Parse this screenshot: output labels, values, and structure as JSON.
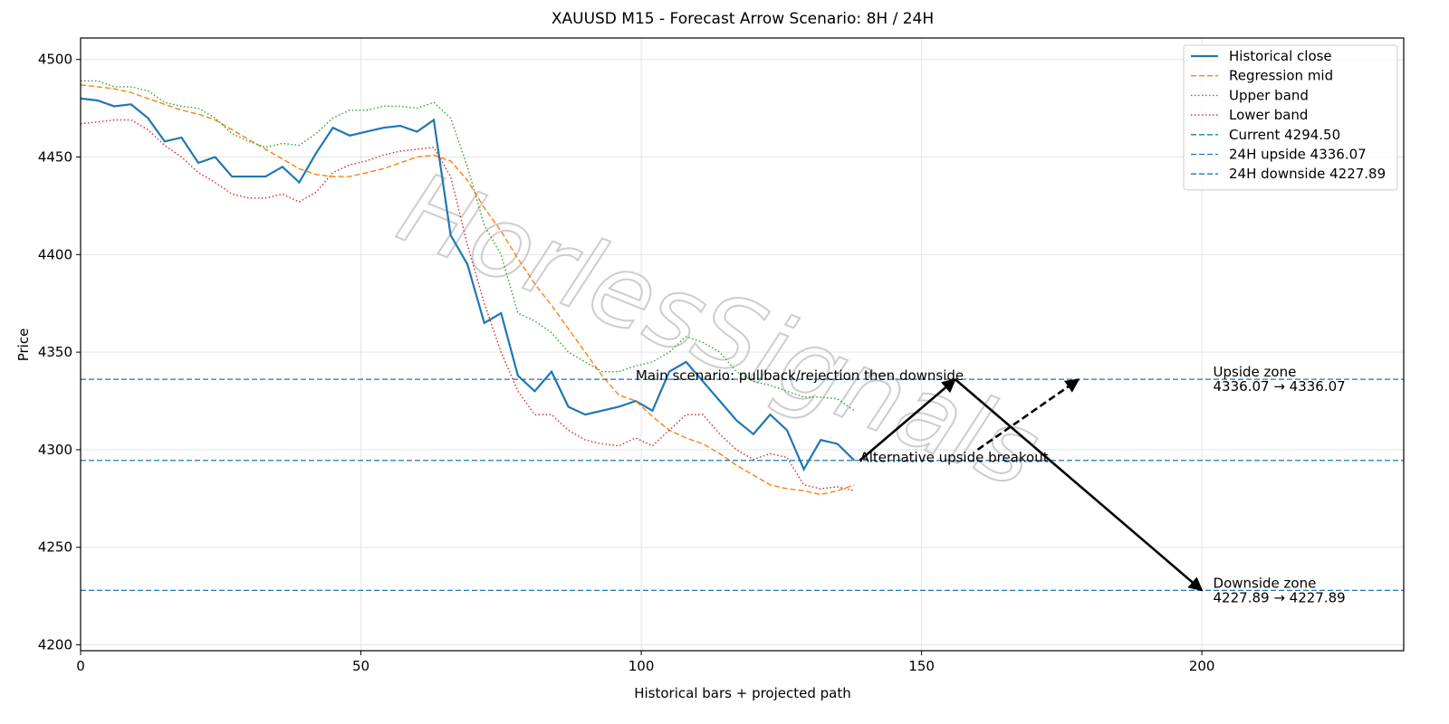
{
  "chart_data": {
    "type": "line",
    "title": "XAUUSD M15 - Forecast Arrow Scenario: 8H / 24H",
    "x_label": "Historical bars + projected path",
    "y_label": "Price",
    "watermark": "HorlesSignals",
    "xlim": [
      0,
      236
    ],
    "ylim": [
      4197,
      4511
    ],
    "xticks": [
      0,
      50,
      100,
      150,
      200
    ],
    "yticks": [
      4200,
      4250,
      4300,
      4350,
      4400,
      4450,
      4500
    ],
    "grid": true,
    "legend": "upper right",
    "x": [
      0,
      3,
      6,
      9,
      12,
      15,
      18,
      21,
      24,
      27,
      30,
      33,
      36,
      39,
      42,
      45,
      48,
      51,
      54,
      57,
      60,
      63,
      66,
      69,
      72,
      75,
      78,
      81,
      84,
      87,
      90,
      93,
      96,
      99,
      102,
      105,
      108,
      111,
      114,
      117,
      120,
      123,
      126,
      129,
      132,
      135,
      138
    ],
    "series": [
      {
        "name": "Historical close",
        "color": "#1f77b4",
        "style": "solid",
        "values": [
          4480,
          4479,
          4476,
          4477,
          4470,
          4458,
          4460,
          4447,
          4450,
          4440,
          4440,
          4440,
          4445,
          4437,
          4452,
          4465,
          4461,
          4463,
          4465,
          4466,
          4463,
          4469,
          4410,
          4395,
          4365,
          4370,
          4338,
          4330,
          4340,
          4322,
          4318,
          4320,
          4322,
          4325,
          4320,
          4340,
          4345,
          4335,
          4325,
          4315,
          4308,
          4318,
          4310,
          4290,
          4305,
          4303,
          4294.5
        ]
      },
      {
        "name": "Regression mid",
        "color": "#ff7f0e",
        "style": "dashed",
        "values": [
          4487,
          4486,
          4485,
          4483,
          4480,
          4477,
          4474,
          4472,
          4469,
          4464,
          4459,
          4454,
          4449,
          4444,
          4441,
          4440,
          4440,
          4442,
          4444,
          4447,
          4450,
          4451,
          4448,
          4438,
          4424,
          4412,
          4398,
          4385,
          4374,
          4362,
          4350,
          4338,
          4328,
          4325,
          4317,
          4310,
          4306,
          4303,
          4298,
          4292,
          4287,
          4282,
          4280,
          4279,
          4277,
          4279,
          4282
        ]
      },
      {
        "name": "Upper band",
        "color": "#2ca02c",
        "style": "dotted",
        "values": [
          4489,
          4489,
          4486,
          4486,
          4484,
          4478,
          4476,
          4475,
          4470,
          4462,
          4458,
          4455,
          4457,
          4456,
          4462,
          4470,
          4474,
          4474,
          4476,
          4476,
          4475,
          4478,
          4470,
          4445,
          4415,
          4400,
          4370,
          4366,
          4360,
          4350,
          4345,
          4340,
          4340,
          4343,
          4345,
          4350,
          4358,
          4355,
          4350,
          4340,
          4335,
          4333,
          4330,
          4327,
          4327,
          4326,
          4320
        ]
      },
      {
        "name": "Lower band",
        "color": "#d62728",
        "style": "dotted",
        "values": [
          4467,
          4468,
          4469,
          4469,
          4464,
          4456,
          4450,
          4442,
          4437,
          4431,
          4429,
          4429,
          4431,
          4427,
          4432,
          4442,
          4446,
          4448,
          4451,
          4453,
          4454,
          4455,
          4440,
          4405,
          4375,
          4350,
          4330,
          4318,
          4318,
          4310,
          4305,
          4303,
          4302,
          4306,
          4302,
          4310,
          4318,
          4318,
          4308,
          4300,
          4295,
          4298,
          4296,
          4282,
          4280,
          4281,
          4279
        ]
      }
    ],
    "hlines": [
      {
        "name": "Current 4294.50",
        "value": 4294.5,
        "color": "#1f77b4"
      },
      {
        "name": "24H upside 4336.07",
        "value": 4336.07,
        "color": "#1f77b4"
      },
      {
        "name": "24H downside 4227.89",
        "value": 4227.89,
        "color": "#1f77b4"
      }
    ],
    "arrows": [
      {
        "style": "solid",
        "points": [
          [
            139,
            4294.5
          ],
          [
            156,
            4336.07
          ],
          [
            200,
            4227.89
          ]
        ]
      },
      {
        "style": "dashed",
        "points": [
          [
            160,
            4300
          ],
          [
            178,
            4336
          ]
        ]
      }
    ],
    "annotations": [
      {
        "lines": [
          "Main scenario: pullback/rejection then downside"
        ],
        "x": 99,
        "y": 4338
      },
      {
        "lines": [
          "Alternative upside breakout"
        ],
        "x": 139,
        "y": 4296
      },
      {
        "lines": [
          "Upside zone",
          "4336.07 → 4336.07"
        ],
        "x": 202,
        "y": 4336.07
      },
      {
        "lines": [
          "Downside zone",
          "4227.89 → 4227.89"
        ],
        "x": 202,
        "y": 4227.89
      }
    ]
  }
}
